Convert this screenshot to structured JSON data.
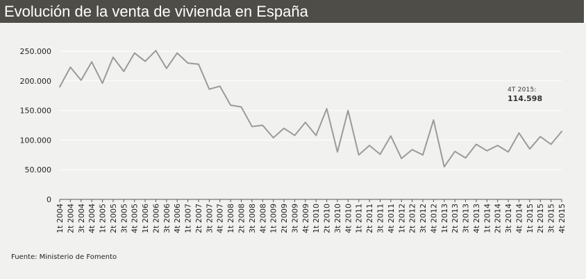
{
  "header": {
    "title": "Evolución de la venta de vivienda en España"
  },
  "source": "Fuente: Ministerio de Fomento",
  "annotation": {
    "label": "4T 2015:",
    "value": "114.598"
  },
  "chart_data": {
    "type": "line",
    "title": "Evolución de la venta de vivienda en España",
    "xlabel": "",
    "ylabel": "",
    "ylim": [
      0,
      250000
    ],
    "y_ticks": [
      0,
      50000,
      100000,
      150000,
      200000,
      250000
    ],
    "y_tick_labels": [
      "0",
      "50.000",
      "100.000",
      "150.000",
      "200.000",
      "250.000"
    ],
    "grid": true,
    "categories": [
      "1t 2004",
      "2t 2004",
      "3t 2004",
      "4t 2004",
      "1t 2005",
      "2t 2005",
      "3t 2005",
      "4t 2005",
      "1t 2006",
      "2t 2006",
      "3t 2006",
      "4t 2006",
      "1t 2007",
      "2t 2007",
      "3t 2007",
      "4t 2007",
      "1t 2008",
      "2t 2008",
      "3t 2008",
      "4t 2008",
      "1t 2009",
      "2t 2009",
      "3t 2009",
      "4t 2009",
      "1t 2010",
      "2t 2010",
      "3t 2010",
      "4t 2010",
      "1t 2011",
      "2t 2011",
      "3t 2011",
      "4t 2011",
      "1t 2012",
      "2t 2012",
      "3t 2012",
      "4t 2012",
      "1t 2013",
      "2t 2013",
      "3t 2013",
      "4t 2013",
      "1t 2014",
      "2t 2014",
      "3t 2014",
      "4t 2014",
      "1t 2015",
      "2t 2015",
      "3t 2015",
      "4t 2015"
    ],
    "series": [
      {
        "color": "#9a9a98",
        "values": [
          190000,
          223000,
          201000,
          232000,
          196000,
          240000,
          216000,
          247000,
          233000,
          251000,
          221000,
          247000,
          230000,
          228000,
          186000,
          191000,
          159000,
          156000,
          123000,
          125000,
          104000,
          120000,
          108000,
          130000,
          108000,
          153000,
          80000,
          150000,
          75000,
          91000,
          76000,
          107000,
          69000,
          84000,
          75000,
          134000,
          55000,
          81000,
          70000,
          93000,
          82000,
          91000,
          80000,
          112000,
          85000,
          106000,
          93000,
          114598
        ]
      }
    ]
  }
}
